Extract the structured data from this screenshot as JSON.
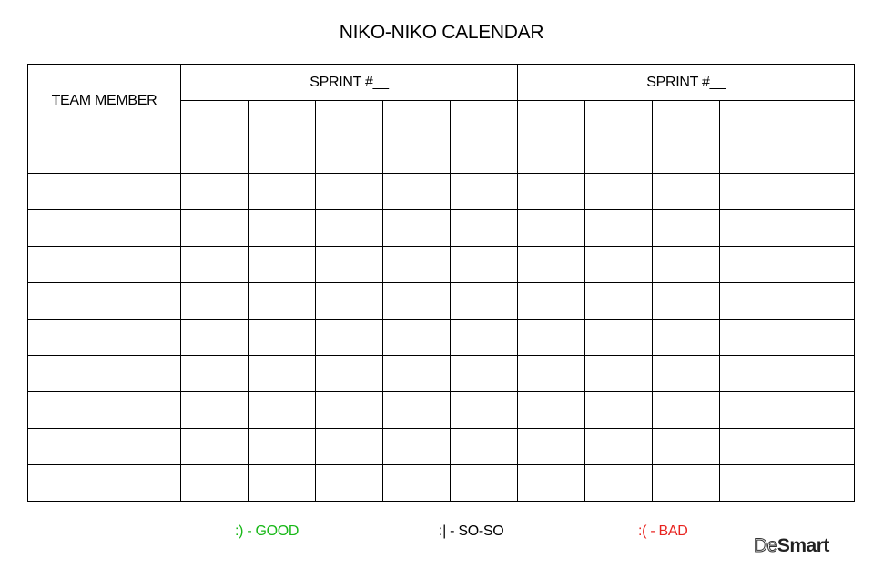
{
  "title": "NIKO-NIKO CALENDAR",
  "table": {
    "member_header": "TEAM MEMBER",
    "sprints": [
      "SPRINT #__",
      "SPRINT #__"
    ],
    "days_per_sprint": 5,
    "rows": 10
  },
  "legend": {
    "good": ":) - GOOD",
    "soso": ":| - SO-SO",
    "bad": ":( - BAD"
  },
  "colors": {
    "good": "#18b818",
    "soso": "#000000",
    "bad": "#e8231f"
  },
  "logo": {
    "part1": "De",
    "part2": "Smart"
  }
}
